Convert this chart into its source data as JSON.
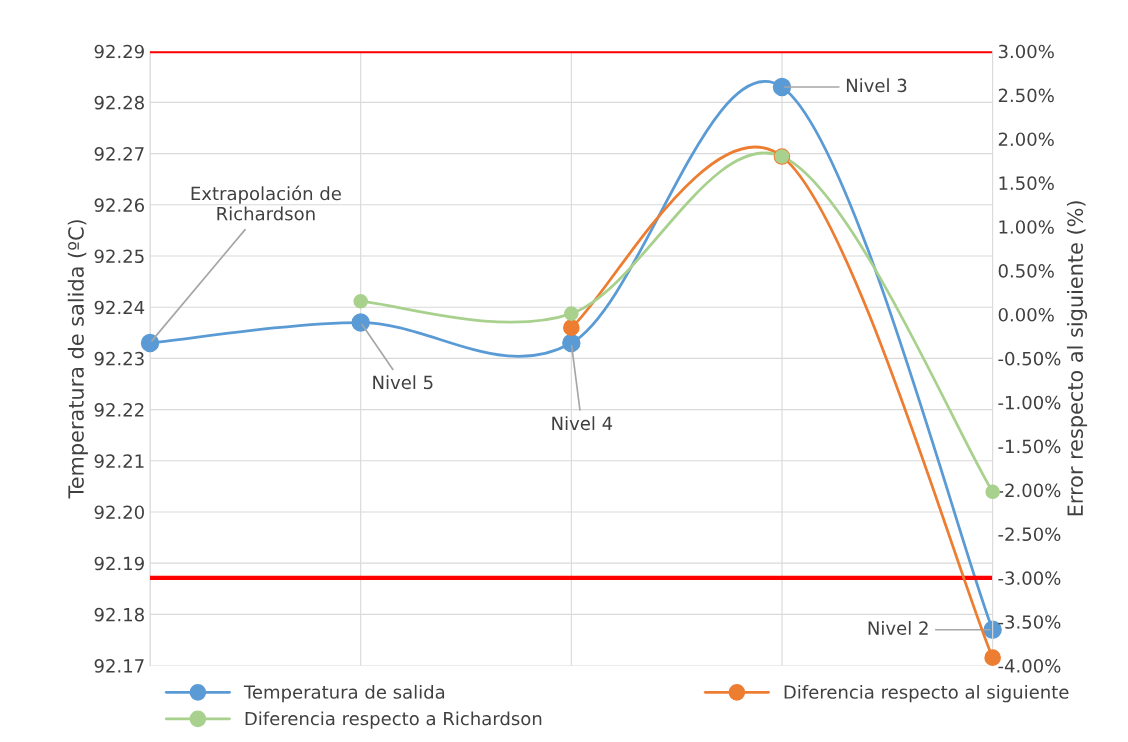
{
  "chart_data": {
    "type": "line",
    "ylabel": "Temperatura de salida (ºC)",
    "y2label": "Error respecto al siguiente (%)",
    "categories": [
      null,
      null,
      null,
      null,
      null
    ],
    "series": [
      {
        "name": "Temperatura de salida",
        "color": "#5b9bd5",
        "values": [
          92.233,
          92.237,
          92.233,
          92.283,
          92.177
        ]
      },
      {
        "name": "Diferencia respecto al siguiente",
        "color": "#ed7d31",
        "axis": "y2",
        "values": [
          null,
          null,
          -0.15,
          1.8,
          -3.91
        ]
      },
      {
        "name": "Diferencia respecto a Richardson",
        "color": "#a9d18e",
        "axis": "y2",
        "values": [
          null,
          0.15,
          0.01,
          1.8,
          -2.02
        ]
      }
    ],
    "ylim": [
      92.17,
      92.29
    ],
    "yticks": [
      {
        "value": 92.17,
        "label": "92.17"
      },
      {
        "value": 92.18,
        "label": "92.18"
      },
      {
        "value": 92.19,
        "label": "92.19"
      },
      {
        "value": 92.2,
        "label": "92.20"
      },
      {
        "value": 92.21,
        "label": "92.21"
      },
      {
        "value": 92.22,
        "label": "92.22"
      },
      {
        "value": 92.23,
        "label": "92.23"
      },
      {
        "value": 92.24,
        "label": "92.24"
      },
      {
        "value": 92.25,
        "label": "92.25"
      },
      {
        "value": 92.26,
        "label": "92.26"
      },
      {
        "value": 92.27,
        "label": "92.27"
      },
      {
        "value": 92.28,
        "label": "92.28"
      },
      {
        "value": 92.29,
        "label": "92.29"
      }
    ],
    "y2lim": [
      -4,
      3
    ],
    "y2ticks": [
      {
        "value": -4,
        "label": "-4.00%"
      },
      {
        "value": -3.5,
        "label": "-3.50%"
      },
      {
        "value": -3,
        "label": "-3.00%"
      },
      {
        "value": -2.5,
        "label": "-2.50%"
      },
      {
        "value": -2,
        "label": "-2.00%"
      },
      {
        "value": -1.5,
        "label": "-1.50%"
      },
      {
        "value": -1,
        "label": "-1.00%"
      },
      {
        "value": -0.5,
        "label": "-0.50%"
      },
      {
        "value": 0,
        "label": "0.00%"
      },
      {
        "value": 0.5,
        "label": "0.50%"
      },
      {
        "value": 1,
        "label": "1.00%"
      },
      {
        "value": 1.5,
        "label": "1.50%"
      },
      {
        "value": 2,
        "label": "2.00%"
      },
      {
        "value": 2.5,
        "label": "2.50%"
      },
      {
        "value": 3,
        "label": "3.00%"
      }
    ],
    "ref_lines": [
      {
        "axis": "y2",
        "value": 3,
        "color": "#ff0000"
      },
      {
        "axis": "y2",
        "value": -3,
        "color": "#ff0000"
      }
    ],
    "annotations": [
      "Extrapolación de\nRichardson",
      "Nivel 5",
      "Nivel 4",
      "Nivel 3",
      "Nivel 2"
    ],
    "grid": true,
    "legend": "bottom",
    "marker": "circle",
    "line_style": "solid"
  }
}
